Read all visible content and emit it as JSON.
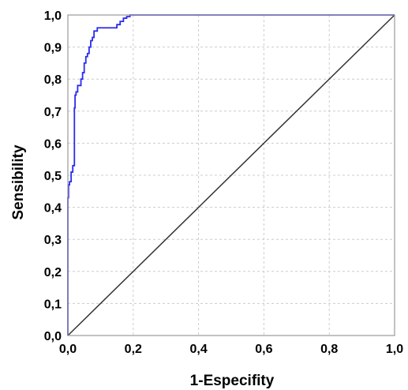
{
  "chart_data": {
    "type": "line",
    "title": "",
    "xlabel": "1-Especifity",
    "ylabel": "Sensibility",
    "xlim": [
      0,
      1
    ],
    "ylim": [
      0,
      1
    ],
    "grid": true,
    "x_ticks": [
      0,
      0.2,
      0.4,
      0.6,
      0.8,
      1.0
    ],
    "y_ticks": [
      0,
      0.1,
      0.2,
      0.3,
      0.4,
      0.5,
      0.6,
      0.7,
      0.8,
      0.9,
      1.0
    ],
    "x_tick_labels": [
      "0,0",
      "0,2",
      "0,4",
      "0,6",
      "0,8",
      "1,0"
    ],
    "y_tick_labels": [
      "0,0",
      "0,1",
      "0,2",
      "0,3",
      "0,4",
      "0,5",
      "0,6",
      "0,7",
      "0,8",
      "0,9",
      "1,0"
    ],
    "colors": {
      "roc": "#2b2bf0",
      "reference": "#333333",
      "grid": "#cccccc",
      "frame": "#999999"
    },
    "series": [
      {
        "x": [
          0.0,
          0.0,
          0.002,
          0.002,
          0.005,
          0.005,
          0.01,
          0.01,
          0.015,
          0.015,
          0.02,
          0.02,
          0.022,
          0.022,
          0.025,
          0.025,
          0.03,
          0.03,
          0.04,
          0.04,
          0.045,
          0.045,
          0.05,
          0.05,
          0.055,
          0.055,
          0.06,
          0.06,
          0.065,
          0.065,
          0.07,
          0.07,
          0.075,
          0.075,
          0.08,
          0.08,
          0.09,
          0.09,
          0.12,
          0.12,
          0.15,
          0.15,
          0.16,
          0.16,
          0.17,
          0.17,
          0.18,
          0.18,
          0.19,
          0.19,
          1.0
        ],
        "y": [
          0.0,
          0.43,
          0.43,
          0.47,
          0.47,
          0.48,
          0.48,
          0.51,
          0.51,
          0.53,
          0.53,
          0.71,
          0.71,
          0.75,
          0.75,
          0.76,
          0.76,
          0.78,
          0.78,
          0.8,
          0.8,
          0.82,
          0.82,
          0.85,
          0.85,
          0.87,
          0.87,
          0.88,
          0.88,
          0.9,
          0.9,
          0.92,
          0.92,
          0.93,
          0.93,
          0.95,
          0.95,
          0.96,
          0.96,
          0.96,
          0.96,
          0.97,
          0.97,
          0.98,
          0.98,
          0.99,
          0.99,
          0.995,
          0.995,
          1.0,
          1.0
        ]
      },
      {
        "x": [
          0,
          1
        ],
        "y": [
          0,
          1
        ]
      }
    ]
  }
}
